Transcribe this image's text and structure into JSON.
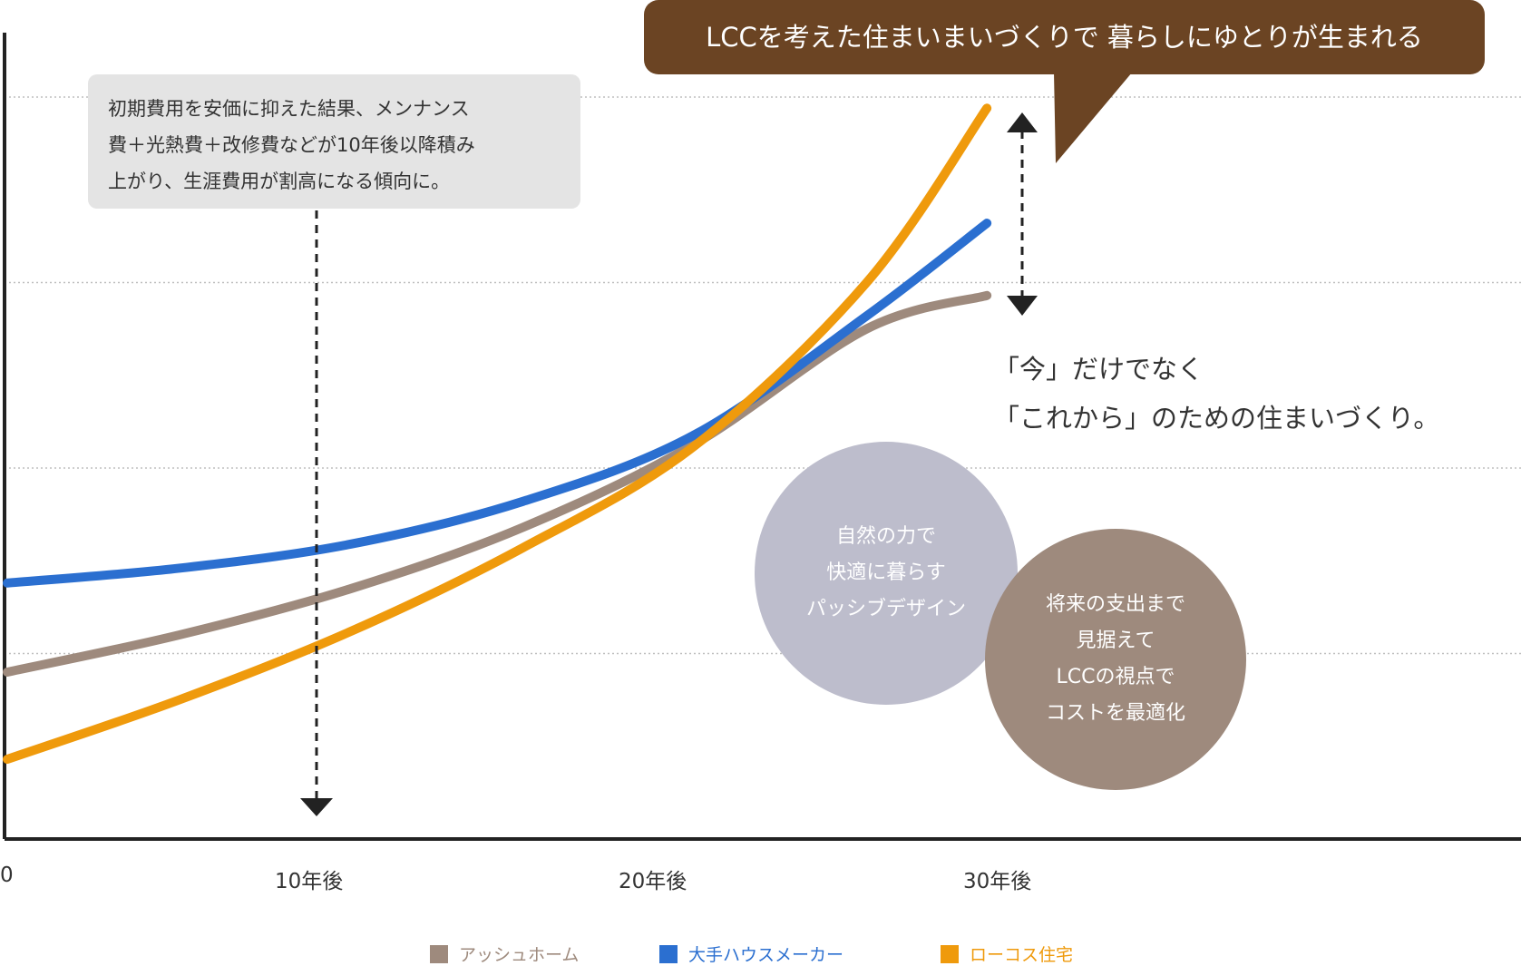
{
  "chart_data": {
    "type": "line",
    "x_ticks": [
      {
        "value": 0,
        "label": "0"
      },
      {
        "value": 10,
        "label": "10年後"
      },
      {
        "value": 20,
        "label": "20年後"
      },
      {
        "value": 30,
        "label": "30年後"
      }
    ],
    "xlim": [
      0,
      44
    ],
    "ylim": [
      0,
      4.4
    ],
    "grid": "horizontal-dotted",
    "gridlines": [
      1,
      2,
      3,
      4
    ],
    "series": [
      {
        "name": "アッシュホーム",
        "color": "#9e8a7d",
        "x": [
          0,
          5,
          10,
          15,
          20,
          25,
          28.5
        ],
        "y": [
          0.9,
          1.1,
          1.35,
          1.68,
          2.13,
          2.75,
          2.93
        ]
      },
      {
        "name": "大手ハウスメーカー",
        "color": "#2b6fd0",
        "x": [
          0,
          5,
          10,
          15,
          20,
          25,
          28.5
        ],
        "y": [
          1.38,
          1.46,
          1.59,
          1.82,
          2.18,
          2.82,
          3.32
        ]
      },
      {
        "name": "ローコス住宅",
        "color": "#ef9a0c",
        "x": [
          0,
          5,
          10,
          15,
          20,
          25,
          28.5
        ],
        "y": [
          0.43,
          0.75,
          1.12,
          1.57,
          2.12,
          3.0,
          3.94
        ]
      }
    ],
    "legend_position": "bottom-center"
  },
  "annotations": {
    "note_lines": [
      "初期費用を安価に抑えた結果、メンナンス",
      "費＋光熱費＋改修費などが10年後以降積み",
      "上がり、生涯費用が割高になる傾向に。"
    ],
    "callout": "LCCを考えた住まいまいづくりで 暮らしにゆとりが生まれる",
    "tagline_lines": [
      "「今」だけでなく",
      "「これから」のための住まいづくり。"
    ],
    "circle1_lines": [
      "自然の力で",
      "快適に暮らす",
      "パッシブデザイン"
    ],
    "circle2_lines": [
      "将来の支出まで",
      "見据えて",
      "LCCの視点で",
      "コストを最適化"
    ]
  },
  "colors": {
    "callout_bg": "#6b4423",
    "note_bg": "#e4e4e4",
    "circle1_bg": "#bdbdcc",
    "circle2_bg": "#9e8a7d",
    "axis": "#222222"
  }
}
